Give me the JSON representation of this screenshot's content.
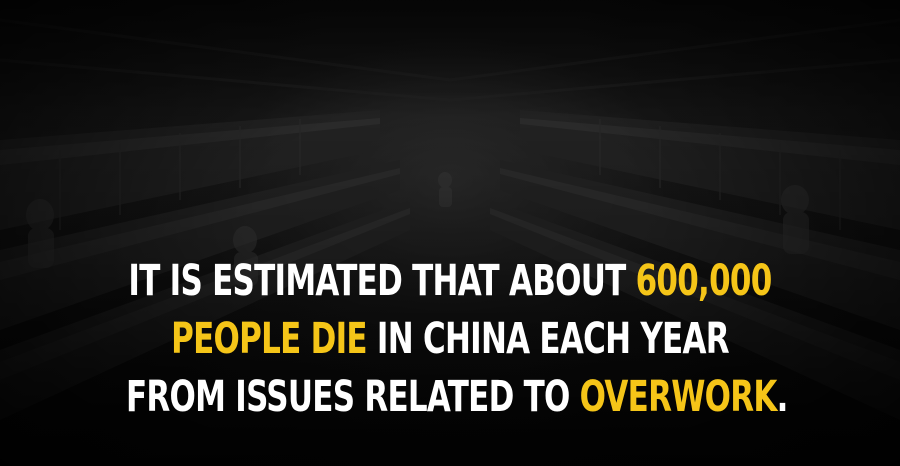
{
  "caption": {
    "line1_part1": "IT IS ESTIMATED THAT ABOUT ",
    "line1_highlight": "600,000",
    "line2_highlight": "PEOPLE DIE",
    "line2_part2": " IN CHINA EACH YEAR",
    "line3_part1": "FROM ISSUES RELATED TO ",
    "line3_highlight": "OVERWORK",
    "line3_end": "."
  },
  "colors": {
    "background": "#0b0b0b",
    "text": "#ffffff",
    "highlight": "#f5c518"
  },
  "background_image": "dark black-and-white photo of a factory floor with rows of machines and workers"
}
